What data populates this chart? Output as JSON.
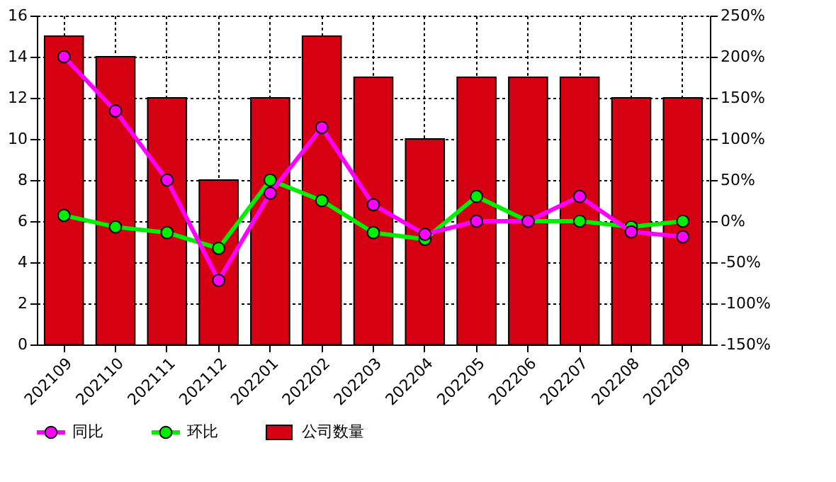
{
  "chart_data": {
    "type": "bar",
    "categories": [
      "202109",
      "202110",
      "202111",
      "202112",
      "202201",
      "202202",
      "202203",
      "202204",
      "202205",
      "202206",
      "202207",
      "202208",
      "202209"
    ],
    "series": [
      {
        "name": "公司数量",
        "color": "#d50011",
        "values": [
          15,
          14,
          12,
          8,
          12,
          15,
          13,
          10,
          13,
          13,
          13,
          12,
          12
        ]
      },
      {
        "name": "同比",
        "type": "line",
        "axis": "y2",
        "color": "#ff00ff",
        "values": [
          200,
          134,
          50,
          -72,
          34,
          114,
          20,
          -16,
          0,
          0,
          30,
          -13,
          -19
        ]
      },
      {
        "name": "环比",
        "type": "line",
        "axis": "y2",
        "color": "#00ee00",
        "values": [
          7,
          -7,
          -14,
          -33,
          50,
          25,
          -14,
          -22,
          30,
          0,
          0,
          -7,
          0
        ]
      }
    ],
    "ylim": [
      0,
      16
    ],
    "yticks": [
      0,
      2,
      4,
      6,
      8,
      10,
      12,
      14,
      16
    ],
    "y2lim": [
      -150,
      250
    ],
    "y2ticks": [
      {
        "value": -150,
        "label": "-150%"
      },
      {
        "value": -100,
        "label": "-100%"
      },
      {
        "value": -50,
        "label": "-50%"
      },
      {
        "value": 0,
        "label": "0%"
      },
      {
        "value": 50,
        "label": "50%"
      },
      {
        "value": 100,
        "label": "100%"
      },
      {
        "value": 150,
        "label": "150%"
      },
      {
        "value": 200,
        "label": "200%"
      },
      {
        "value": 250,
        "label": "250%"
      }
    ],
    "grid": true,
    "legend": "bottom left",
    "marker": "circle",
    "line_style": "solid"
  }
}
